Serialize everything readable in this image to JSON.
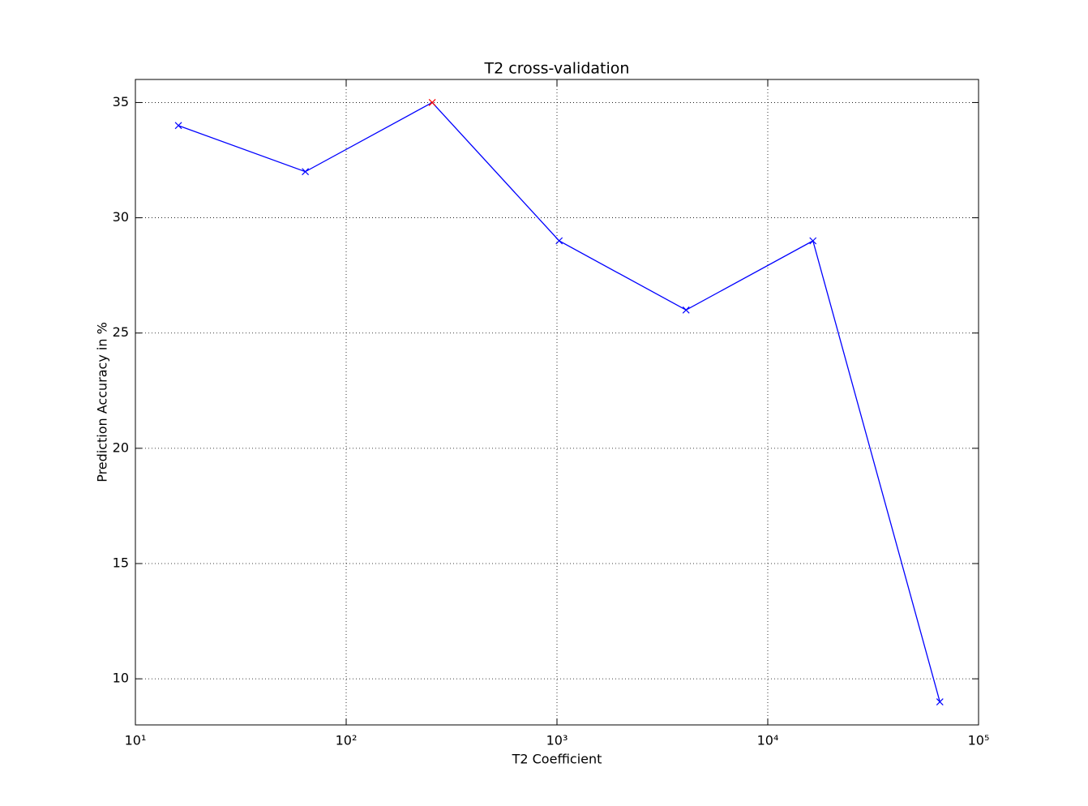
{
  "chart_data": {
    "type": "line",
    "title": "T2 cross-validation",
    "x_label": "T2 Coefficient",
    "y_label": "Prediction Accuracy in %",
    "x": [
      16,
      64,
      256,
      1024,
      4096,
      16384,
      65536
    ],
    "series": [
      {
        "color": "#0000ff",
        "values": [
          34,
          32,
          35,
          29,
          26,
          29,
          9
        ],
        "marker_colors": [
          "#0000ff",
          "#0000ff",
          "#ff0000",
          "#0000ff",
          "#0000ff",
          "#0000ff",
          "#0000ff"
        ]
      }
    ],
    "x_scale": "log",
    "xlim": [
      10,
      100000
    ],
    "xticks": [
      {
        "value": 10,
        "label": "10¹"
      },
      {
        "value": 100,
        "label": "10²"
      },
      {
        "value": 1000,
        "label": "10³"
      },
      {
        "value": 10000,
        "label": "10⁴"
      },
      {
        "value": 100000,
        "label": "10⁵"
      }
    ],
    "ylim": [
      8,
      36
    ],
    "yticks": [
      10,
      15,
      20,
      25,
      30,
      35
    ],
    "grid": true
  }
}
